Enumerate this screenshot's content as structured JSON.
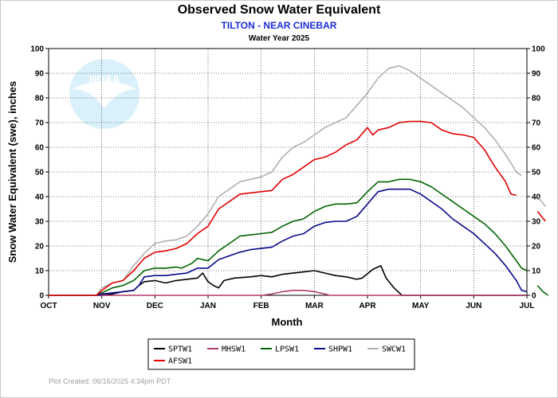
{
  "chart_data": {
    "type": "line",
    "title": "Observed Snow Water Equivalent",
    "subtitle": "TILTON - NEAR CINEBAR",
    "subtitle2": "Water Year 2025",
    "xlabel": "Month",
    "ylabel": "Snow Water Equivalent (swe),  inches",
    "x_ticks": [
      "OCT",
      "NOV",
      "DEC",
      "JAN",
      "FEB",
      "MAR",
      "APR",
      "MAY",
      "JUN",
      "JUL"
    ],
    "ylim": [
      0,
      100
    ],
    "y_ticks": [
      0,
      10,
      20,
      30,
      40,
      50,
      60,
      70,
      80,
      90,
      100
    ],
    "x_unit": "month index from Oct 1",
    "footer": "Plot Created: 06/16/2025 4:34pm PDT",
    "logo_text": "NOAA",
    "series": [
      {
        "name": "SPTW1",
        "color": "#000000",
        "segments": [
          [
            [
              0,
              0
            ],
            [
              1.0,
              0
            ],
            [
              1.2,
              0.5
            ],
            [
              1.4,
              1.5
            ],
            [
              1.6,
              2
            ],
            [
              1.7,
              4
            ],
            [
              1.8,
              5.5
            ],
            [
              2.0,
              6
            ],
            [
              2.2,
              5
            ],
            [
              2.4,
              6
            ],
            [
              2.6,
              6.5
            ],
            [
              2.8,
              7
            ],
            [
              2.9,
              9
            ],
            [
              3.0,
              5.5
            ],
            [
              3.1,
              4
            ],
            [
              3.2,
              3
            ],
            [
              3.3,
              6
            ],
            [
              3.5,
              7
            ],
            [
              3.8,
              7.5
            ],
            [
              4.0,
              8
            ],
            [
              4.2,
              7.5
            ],
            [
              4.4,
              8.5
            ],
            [
              4.6,
              9
            ],
            [
              4.8,
              9.5
            ],
            [
              5.0,
              10
            ],
            [
              5.2,
              9
            ],
            [
              5.4,
              8
            ],
            [
              5.6,
              7.5
            ],
            [
              5.8,
              6.5
            ],
            [
              5.9,
              7
            ],
            [
              6.1,
              10.5
            ],
            [
              6.25,
              12
            ],
            [
              6.35,
              7
            ],
            [
              6.5,
              3
            ],
            [
              6.6,
              1
            ],
            [
              6.65,
              0
            ],
            [
              9,
              0
            ]
          ]
        ]
      },
      {
        "name": "MHSW1",
        "color": "#b23a6e",
        "segments": [
          [
            [
              0,
              0
            ],
            [
              4.0,
              0
            ],
            [
              4.2,
              0.5
            ],
            [
              4.4,
              1.5
            ],
            [
              4.6,
              2
            ],
            [
              4.8,
              2
            ],
            [
              5.0,
              1.5
            ],
            [
              5.2,
              0.5
            ],
            [
              5.3,
              0
            ],
            [
              9,
              0
            ]
          ]
        ]
      },
      {
        "name": "LPSW1",
        "color": "#006400",
        "segments": [
          [
            [
              0,
              0
            ],
            [
              0.9,
              0
            ],
            [
              1.0,
              1
            ],
            [
              1.2,
              3
            ],
            [
              1.4,
              4
            ],
            [
              1.6,
              6
            ],
            [
              1.8,
              10
            ],
            [
              2.0,
              11
            ],
            [
              2.2,
              11
            ],
            [
              2.4,
              11.5
            ],
            [
              2.5,
              11
            ],
            [
              2.6,
              12
            ],
            [
              2.7,
              13
            ],
            [
              2.8,
              15
            ],
            [
              3.0,
              14
            ],
            [
              3.2,
              18
            ],
            [
              3.4,
              21
            ],
            [
              3.6,
              24
            ],
            [
              3.8,
              24.5
            ],
            [
              4.0,
              25
            ],
            [
              4.2,
              25.5
            ],
            [
              4.4,
              28
            ],
            [
              4.6,
              30
            ],
            [
              4.8,
              31
            ],
            [
              5.0,
              34
            ],
            [
              5.2,
              36
            ],
            [
              5.4,
              37
            ],
            [
              5.6,
              37
            ],
            [
              5.8,
              37.5
            ],
            [
              6.0,
              42
            ],
            [
              6.2,
              46
            ],
            [
              6.4,
              46
            ],
            [
              6.6,
              47
            ],
            [
              6.8,
              47
            ],
            [
              7.0,
              46
            ],
            [
              7.2,
              44
            ],
            [
              7.4,
              41
            ],
            [
              7.6,
              38
            ],
            [
              7.8,
              35
            ],
            [
              8.0,
              32
            ],
            [
              8.2,
              29
            ],
            [
              8.4,
              25
            ],
            [
              8.6,
              20
            ],
            [
              8.8,
              14
            ],
            [
              8.9,
              11
            ],
            [
              9.0,
              10
            ]
          ],
          [
            [
              9.2,
              4
            ],
            [
              9.3,
              1.5
            ],
            [
              9.4,
              0
            ]
          ]
        ]
      },
      {
        "name": "SHPW1",
        "color": "#0a0a8a",
        "segments": [
          [
            [
              0,
              0
            ],
            [
              0.9,
              0
            ],
            [
              1.0,
              0.5
            ],
            [
              1.2,
              1
            ],
            [
              1.4,
              1.5
            ],
            [
              1.6,
              2
            ],
            [
              1.7,
              4
            ],
            [
              1.8,
              7.5
            ],
            [
              2.0,
              8
            ],
            [
              2.2,
              8
            ],
            [
              2.4,
              8.5
            ],
            [
              2.6,
              9
            ],
            [
              2.8,
              11
            ],
            [
              3.0,
              11
            ],
            [
              3.2,
              14.5
            ],
            [
              3.4,
              16
            ],
            [
              3.6,
              17.5
            ],
            [
              3.8,
              18.5
            ],
            [
              4.0,
              19
            ],
            [
              4.2,
              19.5
            ],
            [
              4.4,
              22
            ],
            [
              4.6,
              24
            ],
            [
              4.8,
              25
            ],
            [
              5.0,
              28
            ],
            [
              5.2,
              29.5
            ],
            [
              5.4,
              30
            ],
            [
              5.6,
              30
            ],
            [
              5.8,
              32
            ],
            [
              6.0,
              37
            ],
            [
              6.2,
              42
            ],
            [
              6.4,
              43
            ],
            [
              6.6,
              43
            ],
            [
              6.8,
              43
            ],
            [
              7.0,
              41
            ],
            [
              7.2,
              38
            ],
            [
              7.4,
              35
            ],
            [
              7.6,
              31
            ],
            [
              7.8,
              28
            ],
            [
              8.0,
              25
            ],
            [
              8.2,
              21
            ],
            [
              8.4,
              17
            ],
            [
              8.6,
              12
            ],
            [
              8.8,
              6
            ],
            [
              8.9,
              2
            ],
            [
              9.0,
              1.5
            ]
          ]
        ]
      },
      {
        "name": "SWCW1",
        "color": "#b0b0b0",
        "segments": [
          [
            [
              0,
              0
            ],
            [
              0.9,
              0
            ],
            [
              1.0,
              3
            ],
            [
              1.2,
              5
            ],
            [
              1.4,
              6
            ],
            [
              1.6,
              12
            ],
            [
              1.8,
              17
            ],
            [
              2.0,
              21
            ],
            [
              2.2,
              22
            ],
            [
              2.4,
              22.5
            ],
            [
              2.6,
              24
            ],
            [
              2.8,
              28
            ],
            [
              3.0,
              33
            ],
            [
              3.2,
              40
            ],
            [
              3.4,
              43
            ],
            [
              3.6,
              46
            ],
            [
              3.8,
              47
            ],
            [
              4.0,
              48
            ],
            [
              4.2,
              50
            ],
            [
              4.4,
              56
            ],
            [
              4.6,
              60
            ],
            [
              4.8,
              62
            ],
            [
              5.0,
              65
            ],
            [
              5.2,
              68
            ],
            [
              5.4,
              70
            ],
            [
              5.6,
              72
            ],
            [
              5.8,
              77
            ],
            [
              6.0,
              82
            ],
            [
              6.2,
              88
            ],
            [
              6.4,
              92
            ],
            [
              6.6,
              93
            ],
            [
              6.8,
              91
            ],
            [
              7.0,
              88
            ],
            [
              7.2,
              85
            ],
            [
              7.4,
              82
            ],
            [
              7.6,
              79
            ],
            [
              7.8,
              76
            ],
            [
              8.0,
              72
            ],
            [
              8.2,
              68
            ],
            [
              8.4,
              63
            ],
            [
              8.6,
              57
            ],
            [
              8.8,
              50
            ],
            [
              8.9,
              48.5
            ]
          ],
          [
            [
              9.2,
              40
            ],
            [
              9.35,
              36
            ]
          ]
        ]
      },
      {
        "name": "AFSW1",
        "color": "#e00000",
        "segments": [
          [
            [
              0,
              0
            ],
            [
              0.9,
              0
            ],
            [
              1.0,
              2
            ],
            [
              1.2,
              5
            ],
            [
              1.4,
              6
            ],
            [
              1.6,
              10
            ],
            [
              1.8,
              15
            ],
            [
              2.0,
              17.5
            ],
            [
              2.2,
              18
            ],
            [
              2.4,
              19
            ],
            [
              2.6,
              21
            ],
            [
              2.8,
              25
            ],
            [
              3.0,
              28
            ],
            [
              3.2,
              35
            ],
            [
              3.4,
              38
            ],
            [
              3.6,
              41
            ],
            [
              3.8,
              41.5
            ],
            [
              4.0,
              42
            ],
            [
              4.2,
              42.5
            ],
            [
              4.4,
              47
            ],
            [
              4.6,
              49
            ],
            [
              4.8,
              52
            ],
            [
              5.0,
              55
            ],
            [
              5.2,
              56
            ],
            [
              5.4,
              58
            ],
            [
              5.6,
              61
            ],
            [
              5.8,
              63
            ],
            [
              6.0,
              68
            ],
            [
              6.1,
              65
            ],
            [
              6.2,
              67
            ],
            [
              6.4,
              68
            ],
            [
              6.6,
              70
            ],
            [
              6.8,
              70.5
            ],
            [
              7.0,
              70.5
            ],
            [
              7.2,
              70
            ],
            [
              7.4,
              67
            ],
            [
              7.6,
              65.5
            ],
            [
              7.8,
              65
            ],
            [
              8.0,
              64
            ],
            [
              8.2,
              59
            ],
            [
              8.4,
              52
            ],
            [
              8.6,
              46
            ],
            [
              8.7,
              41
            ],
            [
              8.8,
              40.5
            ]
          ],
          [
            [
              9.2,
              34
            ],
            [
              9.35,
              30
            ]
          ]
        ]
      }
    ]
  }
}
